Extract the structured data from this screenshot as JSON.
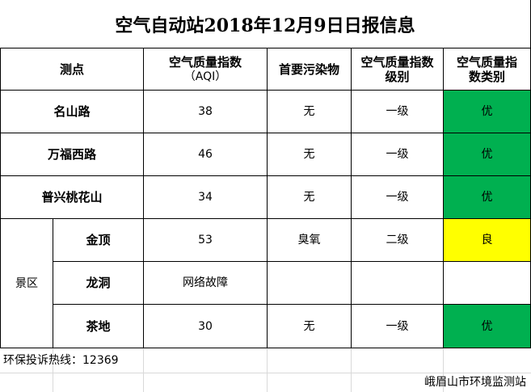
{
  "title": "空气自动站2018年12月9日日报信息",
  "headers": {
    "station": "测点",
    "aqi_line1": "空气质量指数",
    "aqi_line2": "（AQI）",
    "pollutant": "首要污染物",
    "level_line1": "空气质量指数",
    "level_line2": "级别",
    "category_line1": "空气质量指",
    "category_line2": "数类别"
  },
  "rows": [
    {
      "station": "名山路",
      "aqi": "38",
      "pollutant": "无",
      "level": "一级",
      "category": "优",
      "category_color": "#00b050"
    },
    {
      "station": "万福西路",
      "aqi": "46",
      "pollutant": "无",
      "level": "一级",
      "category": "优",
      "category_color": "#00b050"
    },
    {
      "station": "普兴桃花山",
      "aqi": "34",
      "pollutant": "无",
      "level": "一级",
      "category": "优",
      "category_color": "#00b050"
    }
  ],
  "scenic": {
    "group_label": "景区",
    "rows": [
      {
        "station": "金顶",
        "aqi": "53",
        "pollutant": "臭氧",
        "level": "二级",
        "category": "良",
        "category_color": "#ffff00"
      },
      {
        "station": "龙洞",
        "aqi": "网络故障",
        "pollutant": "",
        "level": "",
        "category": "",
        "category_color": "#ffffff"
      },
      {
        "station": "茶地",
        "aqi": "30",
        "pollutant": "无",
        "level": "一级",
        "category": "优",
        "category_color": "#00b050"
      }
    ]
  },
  "footer": {
    "hotline": "环保投诉热线：12369",
    "org": "峨眉山市环境监测站"
  }
}
